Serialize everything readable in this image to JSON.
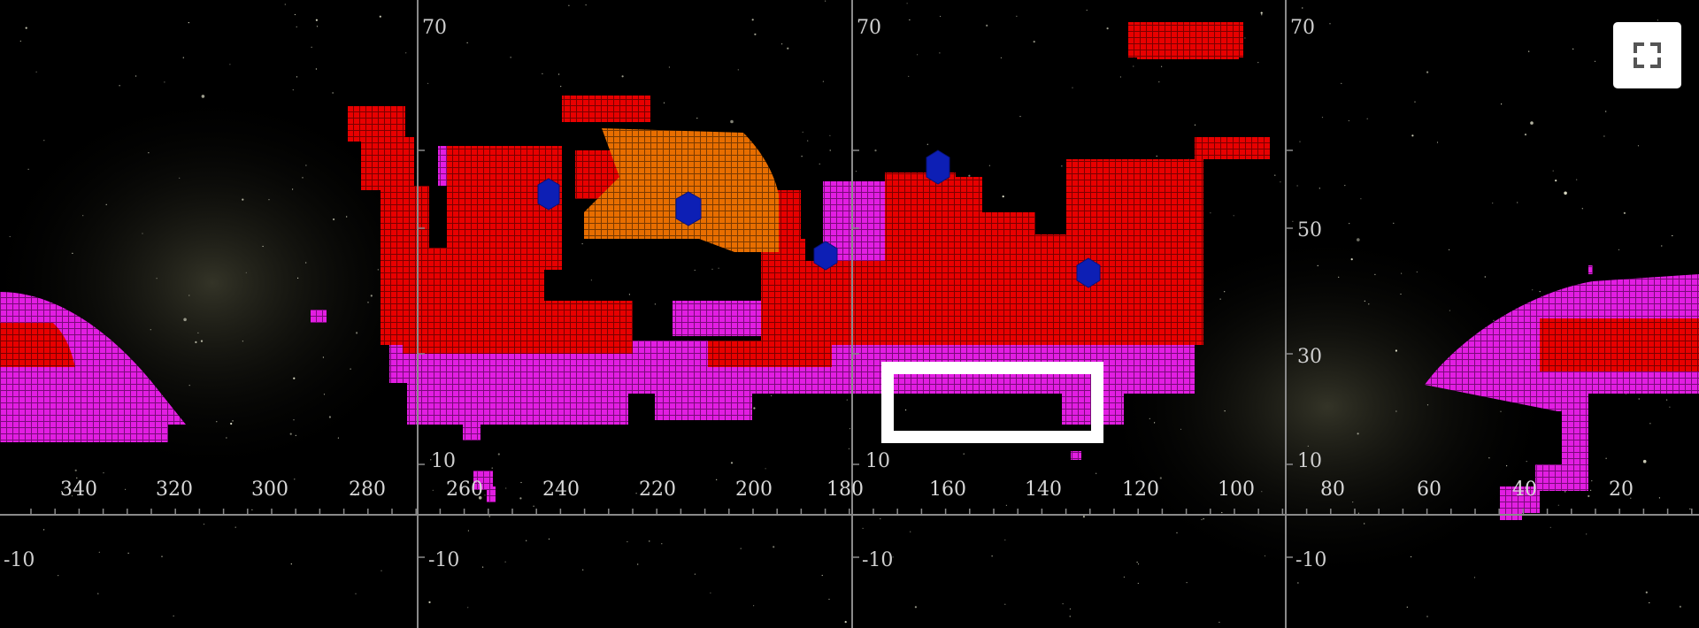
{
  "map": {
    "dec_labels": [
      "70",
      "50",
      "30",
      "10",
      "-10"
    ],
    "ra_labels": [
      "340",
      "320",
      "300",
      "280",
      "260",
      "240",
      "220",
      "200",
      "180",
      "160",
      "140",
      "120",
      "100",
      "80",
      "60",
      "40",
      "20"
    ],
    "colors": {
      "background": "#000000",
      "grid": "#8a8a8a",
      "coverage_red": "#e80000",
      "coverage_magenta": "#e21ee2",
      "coverage_orange": "#e86e00",
      "marker_blue": "#0d1fb5",
      "selection_box": "#ffffff"
    }
  },
  "controls": {
    "fullscreen_icon": "fullscreen-icon"
  }
}
